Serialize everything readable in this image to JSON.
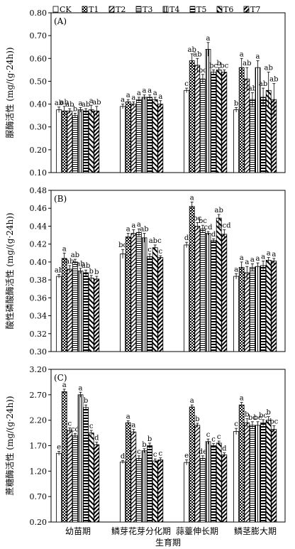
{
  "chart_data": {
    "type": "bar",
    "legend": {
      "placement": "top",
      "entries": [
        "CK",
        "T1",
        "T2",
        "T3",
        "T4",
        "T5",
        "T6",
        "T7"
      ]
    },
    "categories": [
      "幼苗期",
      "鳞芽花芽分化期",
      "蒜薹伸长期",
      "鳞茎膨大期"
    ],
    "xlabel": "生育期",
    "panels": [
      {
        "panel_label": "(A)",
        "ylabel": "脲酶活性 (mg/(g·24h))",
        "ylim": [
          0.1,
          0.8
        ],
        "yticks": [
          "0.10",
          "0.20",
          "0.30",
          "0.40",
          "0.50",
          "0.60",
          "0.70",
          "0.80"
        ],
        "values": [
          [
            0.375,
            0.37,
            0.37,
            0.35,
            0.375,
            0.37,
            0.375,
            0.37
          ],
          [
            0.39,
            0.41,
            0.4,
            0.42,
            0.43,
            0.43,
            0.42,
            0.4
          ],
          [
            0.46,
            0.59,
            0.57,
            0.51,
            0.64,
            0.54,
            0.55,
            0.54
          ],
          [
            0.375,
            0.56,
            0.51,
            0.42,
            0.56,
            0.43,
            0.46,
            0.42
          ]
        ],
        "errors": [
          [
            0.012,
            0.02,
            0.01,
            0.01,
            0.01,
            0.01,
            0.02,
            0.02
          ],
          [
            0.01,
            0.01,
            0.01,
            0.01,
            0.01,
            0.01,
            0.01,
            0.015
          ],
          [
            0.01,
            0.03,
            0.03,
            0.02,
            0.03,
            0.01,
            0.01,
            0.01
          ],
          [
            0.01,
            0.04,
            0.05,
            0.03,
            0.03,
            0.04,
            0.08,
            0.07
          ]
        ],
        "letters": [
          [
            "ab",
            "ab",
            "ab",
            "b",
            "a",
            "ab",
            "a",
            "ab"
          ],
          [
            "a",
            "a",
            "a",
            "a",
            "a",
            "a",
            "a",
            "a"
          ],
          [
            "c",
            "ab",
            "ab",
            "bc",
            "a",
            "bc",
            "b",
            "bc"
          ],
          [
            "b",
            "a",
            "ab",
            "ab",
            "a",
            "ab",
            "ab",
            "ab"
          ]
        ]
      },
      {
        "panel_label": "(B)",
        "ylabel": "酸性磷酸酶活性 (mg/(g·24h))",
        "ylim": [
          0.3,
          0.48
        ],
        "yticks": [
          "0.30",
          "0.32",
          "0.34",
          "0.36",
          "0.38",
          "0.40",
          "0.42",
          "0.44",
          "0.46",
          "0.48"
        ],
        "values": [
          [
            0.384,
            0.404,
            0.392,
            0.4,
            0.39,
            0.388,
            0.382,
            0.381
          ],
          [
            0.409,
            0.428,
            0.432,
            0.433,
            0.427,
            0.406,
            0.416,
            0.405
          ],
          [
            0.419,
            0.462,
            0.44,
            0.437,
            0.432,
            0.424,
            0.449,
            0.431
          ],
          [
            0.384,
            0.394,
            0.388,
            0.394,
            0.395,
            0.396,
            0.402,
            0.401
          ]
        ],
        "errors": [
          [
            0.002,
            0.006,
            0.004,
            0.003,
            0.003,
            0.003,
            0.003,
            0.003
          ],
          [
            0.005,
            0.004,
            0.004,
            0.004,
            0.005,
            0.003,
            0.003,
            0.002
          ],
          [
            0.003,
            0.005,
            0.004,
            0.004,
            0.002,
            0.002,
            0.004,
            0.005
          ],
          [
            0.003,
            0.006,
            0.007,
            0.004,
            0.004,
            0.005,
            0.003,
            0.003
          ]
        ],
        "letters": [
          [
            "ab",
            "a",
            "ab",
            "ab",
            "ab",
            "ab",
            "b",
            "b"
          ],
          [
            "bc",
            "a",
            "a",
            "a",
            "ab",
            "c",
            "abc",
            "c"
          ],
          [
            "d",
            "a",
            "bc",
            "bc",
            "cd",
            "d",
            "ab",
            "bcd"
          ],
          [
            "a",
            "a",
            "a",
            "a",
            "a",
            "a",
            "a",
            "a"
          ]
        ]
      },
      {
        "panel_label": "(C)",
        "ylabel": "蔗糖酶活性 (mg/(g·24h))",
        "ylim": [
          0.2,
          3.2
        ],
        "yticks": [
          "0.20",
          "0.70",
          "1.20",
          "1.70",
          "2.20",
          "2.70",
          "3.20"
        ],
        "values": [
          [
            1.55,
            2.76,
            2.0,
            1.9,
            2.7,
            2.45,
            1.95,
            1.72
          ],
          [
            1.38,
            2.15,
            1.97,
            1.45,
            1.6,
            1.7,
            1.4,
            1.42
          ],
          [
            1.37,
            2.46,
            2.1,
            1.45,
            1.78,
            1.7,
            1.75,
            1.52
          ],
          [
            1.98,
            2.5,
            2.15,
            2.1,
            2.1,
            2.15,
            2.2,
            2.02
          ]
        ],
        "errors": [
          [
            0.04,
            0.05,
            0.05,
            0.04,
            0.05,
            0.05,
            0.05,
            0.05
          ],
          [
            0.03,
            0.04,
            0.05,
            0.05,
            0.04,
            0.05,
            0.04,
            0.04
          ],
          [
            0.05,
            0.04,
            0.04,
            0.05,
            0.05,
            0.04,
            0.04,
            0.04
          ],
          [
            0.06,
            0.05,
            0.08,
            0.07,
            0.07,
            0.06,
            0.07,
            0.07
          ]
        ],
        "letters": [
          [
            "e",
            "a",
            "c",
            "cd",
            "a",
            "b",
            "c",
            "d"
          ],
          [
            "d",
            "a",
            "a",
            "c",
            "b",
            "b",
            "c",
            "c"
          ],
          [
            "e",
            "a",
            "b",
            "de",
            "c",
            "c",
            "c",
            "d"
          ],
          [
            "c",
            "a",
            "b",
            "bc",
            "bc",
            "bc",
            "b",
            "bc"
          ]
        ]
      }
    ]
  }
}
